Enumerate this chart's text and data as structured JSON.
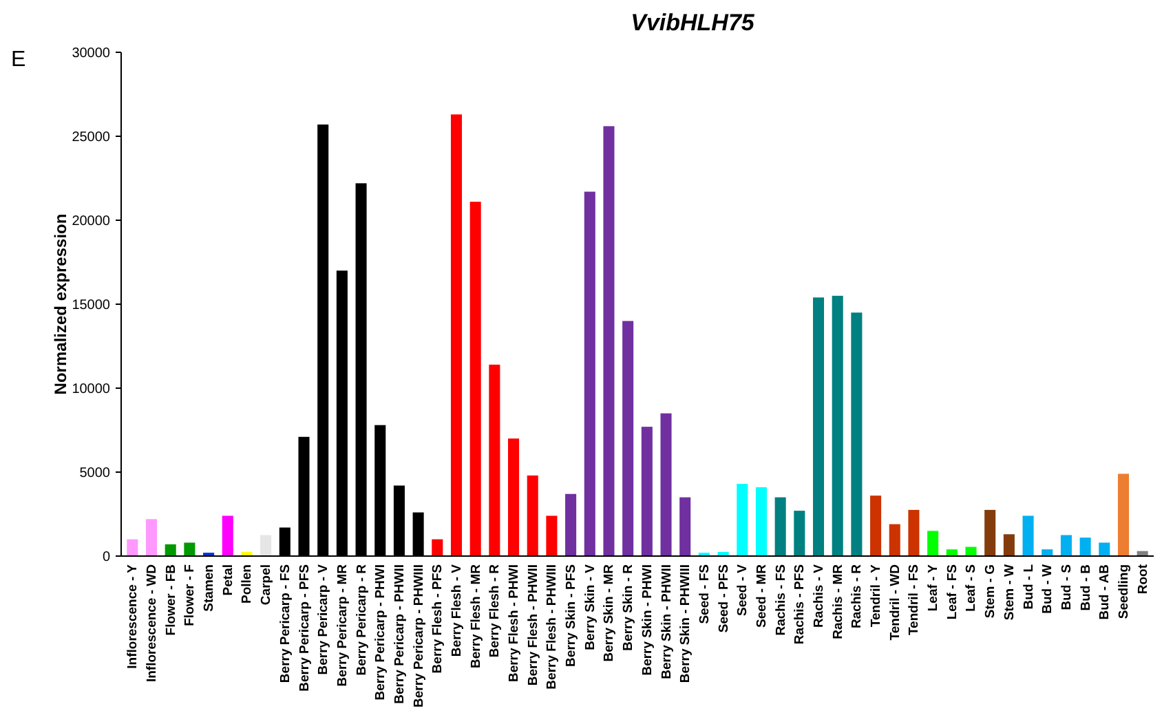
{
  "chart_data": {
    "type": "bar",
    "title": "VvibHLH75",
    "ylabel": "Normalized expression",
    "annotations": [
      "E"
    ],
    "categories": [
      "Inflorescence - Y",
      "Inflorescence - WD",
      "Flower - FB",
      "Flower - F",
      "Stamen",
      "Petal",
      "Pollen",
      "Carpel",
      "Berry Pericarp - FS",
      "Berry Pericarp - PFS",
      "Berry Pericarp - V",
      "Berry Pericarp - MR",
      "Berry Pericarp - R",
      "Berry Pericarp - PHWI",
      "Berry Pericarp - PHWII",
      "Berry Pericarp - PHWIII",
      "Berry Flesh - PFS",
      "Berry Flesh - V",
      "Berry Flesh - MR",
      "Berry Flesh - R",
      "Berry Flesh - PHWI",
      "Berry Flesh - PHWII",
      "Berry Flesh - PHWIII",
      "Berry Skin - PFS",
      "Berry Skin - V",
      "Berry Skin - MR",
      "Berry Skin - R",
      "Berry Skin - PHWI",
      "Berry Skin - PHWII",
      "Berry Skin - PHWIII",
      "Seed - FS",
      "Seed - PFS",
      "Seed - V",
      "Seed - MR",
      "Rachis - FS",
      "Rachis - PFS",
      "Rachis - V",
      "Rachis - MR",
      "Rachis - R",
      "Tendril - Y",
      "Tendril - WD",
      "Tendril - FS",
      "Leaf - Y",
      "Leaf - FS",
      "Leaf - S",
      "Stem - G",
      "Stem - W",
      "Bud - L",
      "Bud - W",
      "Bud - S",
      "Bud - B",
      "Bud - AB",
      "Seedling",
      "Root"
    ],
    "values": [
      1000,
      2200,
      700,
      800,
      200,
      2400,
      250,
      1250,
      1700,
      7100,
      25700,
      17000,
      22200,
      7800,
      4200,
      2600,
      1000,
      26300,
      21100,
      11400,
      7000,
      4800,
      2400,
      3700,
      21700,
      25600,
      14000,
      7700,
      8500,
      3500,
      200,
      250,
      4300,
      4100,
      3500,
      2700,
      15400,
      15500,
      14500,
      3600,
      1900,
      2750,
      1500,
      400,
      550,
      2750,
      1300,
      2400,
      400,
      1250,
      1100,
      800,
      4900,
      300
    ],
    "colors": [
      "#ff99ff",
      "#ff99ff",
      "#009900",
      "#009900",
      "#0033cc",
      "#ff00ff",
      "#ffff00",
      "#e6e6e6",
      "#000000",
      "#000000",
      "#000000",
      "#000000",
      "#000000",
      "#000000",
      "#000000",
      "#000000",
      "#ff0000",
      "#ff0000",
      "#ff0000",
      "#ff0000",
      "#ff0000",
      "#ff0000",
      "#ff0000",
      "#7030a0",
      "#7030a0",
      "#7030a0",
      "#7030a0",
      "#7030a0",
      "#7030a0",
      "#7030a0",
      "#00ffff",
      "#00ffff",
      "#00ffff",
      "#00ffff",
      "#008080",
      "#008080",
      "#008080",
      "#008080",
      "#008080",
      "#cc3300",
      "#cc3300",
      "#cc3300",
      "#00ff00",
      "#00ff00",
      "#00ff00",
      "#843c0c",
      "#843c0c",
      "#00b0f0",
      "#00b0f0",
      "#00b0f0",
      "#00b0f0",
      "#00b0f0",
      "#ed7d31",
      "#808080"
    ],
    "ylim": [
      0,
      30000
    ],
    "yticks": [
      0,
      5000,
      10000,
      15000,
      20000,
      25000,
      30000
    ]
  }
}
